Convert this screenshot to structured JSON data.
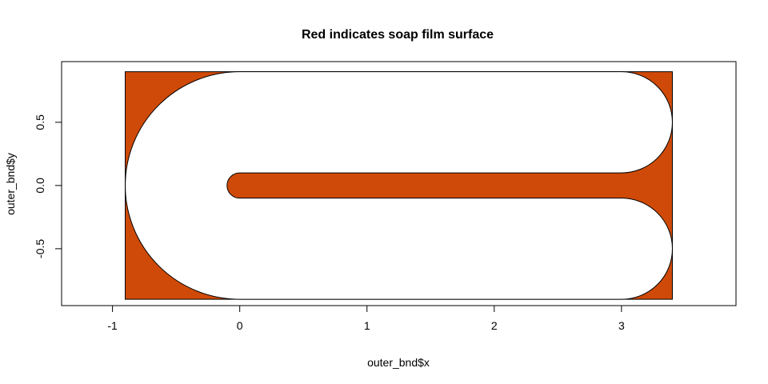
{
  "chart_data": {
    "type": "polygon",
    "title": "Red indicates soap film surface",
    "xlabel": "outer_bnd$x",
    "ylabel": "outer_bnd$y",
    "xlim": [
      -1.4,
      3.9
    ],
    "ylim": [
      -0.95,
      0.98
    ],
    "x_ticks": [
      -1,
      0,
      1,
      2,
      3
    ],
    "y_ticks": [
      -0.5,
      0.0,
      0.5
    ],
    "x_tick_labels": [
      "-1",
      "0",
      "1",
      "2",
      "3"
    ],
    "y_tick_labels": [
      "-0.5",
      "0.0",
      "0.5"
    ],
    "colors": {
      "fill": "#CF4A08",
      "outline": "#000000",
      "hole": "#FFFFFF"
    },
    "shapes": {
      "rectangle": {
        "xmin": -0.9,
        "xmax": 3.4,
        "ymin": -0.9,
        "ymax": 0.9
      },
      "outer_boundary": {
        "left_arc_center": [
          0,
          0
        ],
        "left_arc_radius": 0.9,
        "straight_xmax": 3.0,
        "end_arc_radius": 0.4,
        "upper_end_center": [
          3.0,
          0.5
        ],
        "lower_end_center": [
          3.0,
          -0.5
        ]
      },
      "inner_arm": {
        "xmin": 0.0,
        "xmax": 3.0,
        "half_width": 0.1
      }
    }
  }
}
